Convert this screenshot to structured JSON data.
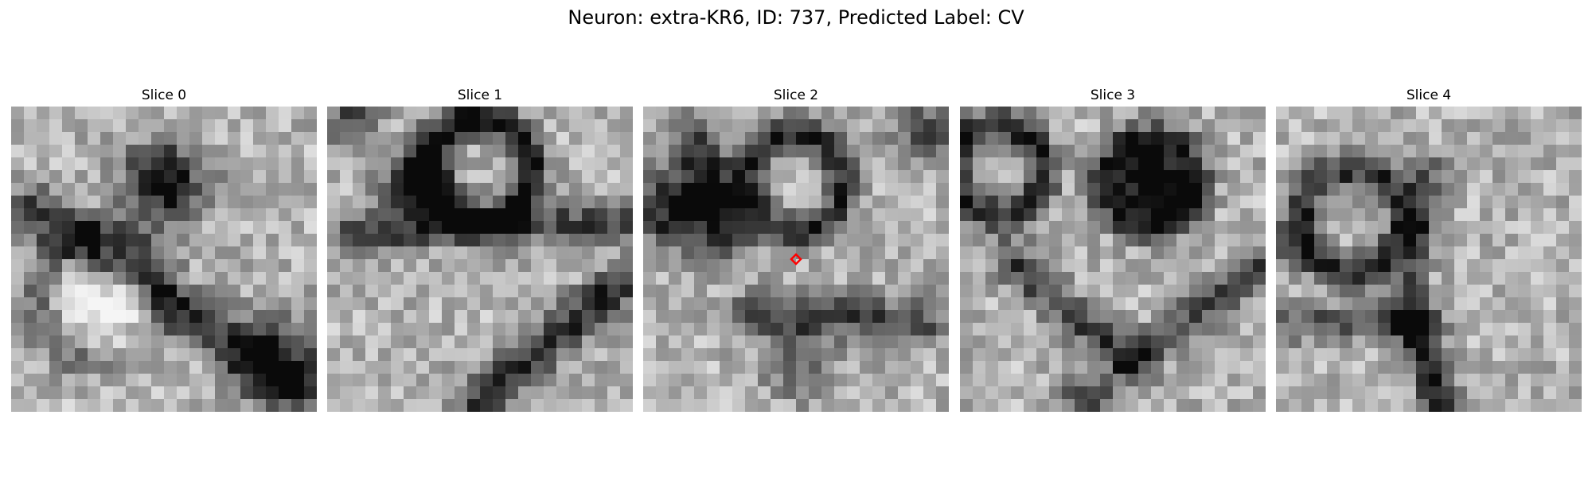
{
  "title": "Neuron: extra-KR6, ID: 737, Predicted Label: CV",
  "slices": [
    {
      "label": "Slice 0"
    },
    {
      "label": "Slice 1"
    },
    {
      "label": "Slice 2",
      "marker": {
        "shape": "diamond",
        "color": "#ff0000"
      }
    },
    {
      "label": "Slice 3"
    },
    {
      "label": "Slice 4"
    }
  ],
  "colormap": "grayscale"
}
